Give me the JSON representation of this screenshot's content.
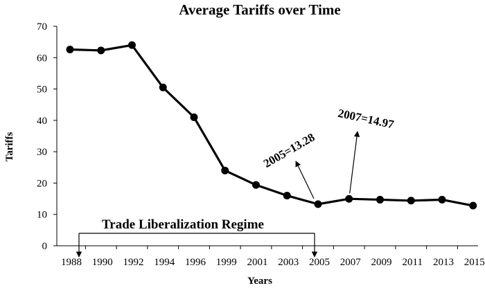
{
  "chart_data": {
    "type": "line",
    "title": "Average Tariffs over Time",
    "xlabel": "Years",
    "ylabel": "Tariffs",
    "categories": [
      "1988",
      "1990",
      "1992",
      "1994",
      "1996",
      "1999",
      "2001",
      "2003",
      "2005",
      "2007",
      "2009",
      "2011",
      "2013",
      "2015"
    ],
    "values": [
      62.6,
      62.3,
      64.0,
      50.5,
      41.0,
      24.0,
      19.4,
      16.0,
      13.28,
      14.97,
      14.7,
      14.4,
      14.7,
      12.8
    ],
    "ylim": [
      0,
      70
    ],
    "yticks": [
      0,
      10,
      20,
      30,
      40,
      50,
      60,
      70
    ],
    "grid": false,
    "legend": "none",
    "series_color": "#000000",
    "annotations": [
      {
        "text": "2005=13.28",
        "category": "2005",
        "value": 13.28
      },
      {
        "text": "2007=14.97",
        "category": "2007",
        "value": 14.97
      }
    ],
    "bracket": {
      "text": "Trade Liberalization Regime",
      "from": "1988",
      "to": "2005"
    }
  }
}
